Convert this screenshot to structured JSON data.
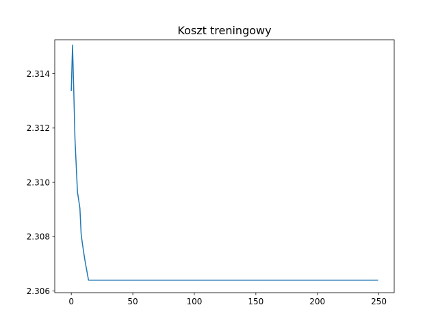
{
  "chart_data": {
    "type": "line",
    "title": "Koszt treningowy",
    "xlabel": "",
    "ylabel": "",
    "xlim": [
      -13.45,
      262.45
    ],
    "ylim": [
      2.30594,
      2.31525
    ],
    "x_ticks": [
      0,
      50,
      100,
      150,
      200,
      250
    ],
    "x_tick_labels": [
      "0",
      "50",
      "100",
      "150",
      "200",
      "250"
    ],
    "y_ticks": [
      2.306,
      2.308,
      2.31,
      2.312,
      2.314
    ],
    "y_tick_labels": [
      "2.306",
      "2.308",
      "2.310",
      "2.312",
      "2.314"
    ],
    "grid": false,
    "legend": "none",
    "line_color": "#1f77b4",
    "series": [
      {
        "x": [
          0,
          1,
          2,
          3,
          4,
          5,
          6,
          7,
          8,
          9,
          10,
          11,
          12,
          13,
          14,
          15,
          20,
          50,
          100,
          150,
          200,
          249
        ],
        "values": [
          2.31338,
          2.31505,
          2.31338,
          2.31158,
          2.31062,
          2.30965,
          2.30935,
          2.30905,
          2.3081,
          2.30775,
          2.30745,
          2.30715,
          2.3069,
          2.30665,
          2.3064,
          2.3064,
          2.3064,
          2.3064,
          2.3064,
          2.3064,
          2.3064,
          2.3064
        ]
      }
    ]
  }
}
